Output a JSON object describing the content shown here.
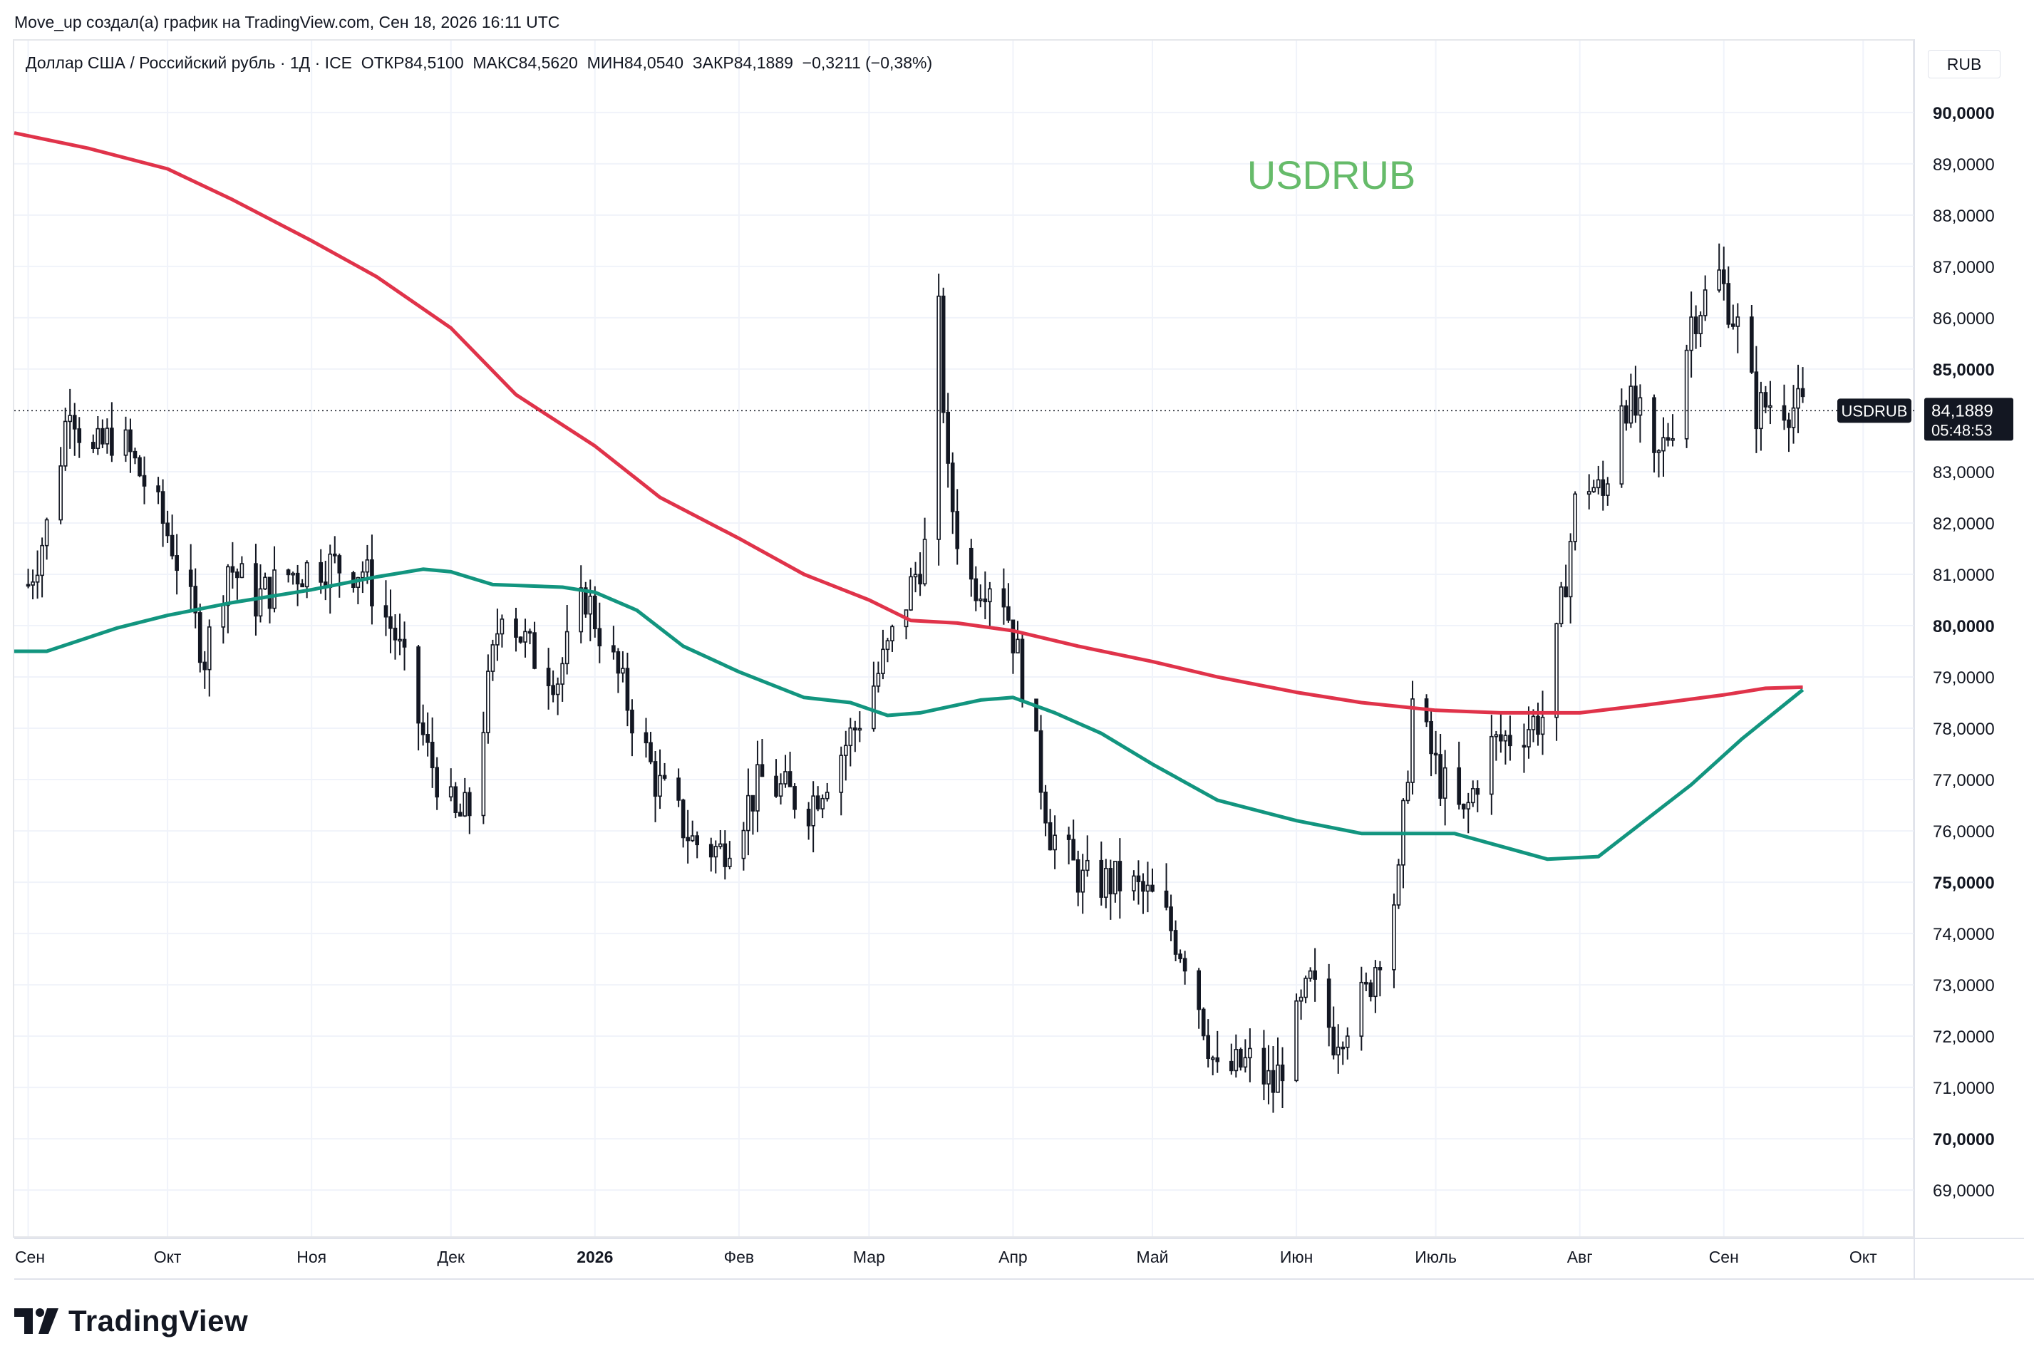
{
  "header": {
    "credit": "Move_up создал(а) график на TradingView.com, Сен 18, 2026 16:11 UTC",
    "symbol_line": "Доллар США / Российский рубль · 1Д · ICE  ОТКР84,5100  МАКС84,5620  МИН84,0540  ЗАКР84,1889  −0,3211 (−0,38%)",
    "currency": "RUB"
  },
  "footer": {
    "brand": "TradingView"
  },
  "colors": {
    "ma_long": "#e0334a",
    "ma_short": "#12957f",
    "watermark": "#66bb6a",
    "candle_up_fill": "#ffffff",
    "candle_down_fill": "#131722",
    "price_tag": "#131722"
  },
  "chart_data": {
    "type": "candlestick",
    "title": "USDRUB",
    "symbol": "USDRUB",
    "y_axis_labels": [
      "90,0000",
      "89,0000",
      "88,0000",
      "87,0000",
      "86,0000",
      "85,0000",
      "83,0000",
      "82,0000",
      "81,0000",
      "80,0000",
      "79,0000",
      "78,0000",
      "77,0000",
      "76,0000",
      "75,0000",
      "74,0000",
      "73,0000",
      "72,0000",
      "71,0000",
      "70,0000",
      "69,0000"
    ],
    "y_axis_values": [
      90,
      89,
      88,
      87,
      86,
      85,
      83,
      82,
      81,
      80,
      79,
      78,
      77,
      76,
      75,
      74,
      73,
      72,
      71,
      70,
      69
    ],
    "y_axis_bold": [
      "90,0000",
      "85,0000",
      "80,0000",
      "75,0000",
      "70,0000"
    ],
    "ylim": [
      68.1,
      91.4
    ],
    "x_axis_labels": [
      {
        "label": "Сен",
        "date": "2025-09-01",
        "bold": false
      },
      {
        "label": "Окт",
        "date": "2025-10-01",
        "bold": false
      },
      {
        "label": "Ноя",
        "date": "2025-11-01",
        "bold": false
      },
      {
        "label": "Дек",
        "date": "2025-12-01",
        "bold": false
      },
      {
        "label": "2026",
        "date": "2026-01-01",
        "bold": true
      },
      {
        "label": "Фев",
        "date": "2026-02-01",
        "bold": false
      },
      {
        "label": "Мар",
        "date": "2026-03-01",
        "bold": false
      },
      {
        "label": "Апр",
        "date": "2026-04-01",
        "bold": false
      },
      {
        "label": "Май",
        "date": "2026-05-01",
        "bold": false
      },
      {
        "label": "Июн",
        "date": "2026-06-01",
        "bold": false
      },
      {
        "label": "Июль",
        "date": "2026-07-01",
        "bold": false
      },
      {
        "label": "Авг",
        "date": "2026-08-01",
        "bold": false
      },
      {
        "label": "Сен",
        "date": "2026-09-01",
        "bold": false
      },
      {
        "label": "Окт",
        "date": "2026-10-01",
        "bold": false
      }
    ],
    "xlim": [
      "2025-08-29",
      "2026-10-12"
    ],
    "last_price": {
      "value": 84.1889,
      "label": "84,1889",
      "countdown": "05:48:53",
      "symbol": "USDRUB"
    },
    "ohlc_keypoints": [
      [
        "2025-09-01",
        80.8
      ],
      [
        "2025-09-06",
        82.2
      ],
      [
        "2025-09-10",
        84.5
      ],
      [
        "2025-09-14",
        83.2
      ],
      [
        "2025-09-20",
        83.8
      ],
      [
        "2025-09-26",
        82.8
      ],
      [
        "2025-10-02",
        81.6
      ],
      [
        "2025-10-09",
        79.4
      ],
      [
        "2025-10-14",
        81.2
      ],
      [
        "2025-10-20",
        80.5
      ],
      [
        "2025-10-27",
        81.0
      ],
      [
        "2025-11-03",
        81.2
      ],
      [
        "2025-11-12",
        81.1
      ],
      [
        "2025-11-19",
        79.8
      ],
      [
        "2025-11-26",
        77.5
      ],
      [
        "2025-12-02",
        76.2
      ],
      [
        "2025-12-05",
        76.4
      ],
      [
        "2025-12-12",
        80.5
      ],
      [
        "2025-12-18",
        79.5
      ],
      [
        "2025-12-24",
        79.0
      ],
      [
        "2025-12-30",
        80.6
      ],
      [
        "2026-01-06",
        79.0
      ],
      [
        "2026-01-14",
        77.0
      ],
      [
        "2026-01-22",
        75.8
      ],
      [
        "2026-01-28",
        75.6
      ],
      [
        "2026-02-06",
        77.0
      ],
      [
        "2026-02-16",
        76.5
      ],
      [
        "2026-02-26",
        78.0
      ],
      [
        "2026-03-05",
        79.5
      ],
      [
        "2026-03-13",
        81.5
      ],
      [
        "2026-03-16",
        86.0
      ],
      [
        "2026-03-18",
        82.8
      ],
      [
        "2026-03-22",
        80.8
      ],
      [
        "2026-03-29",
        81.0
      ],
      [
        "2026-04-03",
        79.0
      ],
      [
        "2026-04-09",
        76.0
      ],
      [
        "2026-04-16",
        75.0
      ],
      [
        "2026-04-25",
        75.0
      ],
      [
        "2026-05-02",
        74.6
      ],
      [
        "2026-05-09",
        73.4
      ],
      [
        "2026-05-15",
        71.2
      ],
      [
        "2026-05-22",
        71.5
      ],
      [
        "2026-05-27",
        71.0
      ],
      [
        "2026-06-04",
        73.0
      ],
      [
        "2026-06-09",
        72.0
      ],
      [
        "2026-06-16",
        72.8
      ],
      [
        "2026-06-23",
        75.0
      ],
      [
        "2026-06-26",
        78.5
      ],
      [
        "2026-07-02",
        77.0
      ],
      [
        "2026-07-07",
        76.2
      ],
      [
        "2026-07-12",
        77.6
      ],
      [
        "2026-07-20",
        78.0
      ],
      [
        "2026-07-25",
        78.3
      ],
      [
        "2026-07-29",
        81.0
      ],
      [
        "2026-08-01",
        83.0
      ],
      [
        "2026-08-06",
        82.5
      ],
      [
        "2026-08-10",
        84.5
      ],
      [
        "2026-08-14",
        84.0
      ],
      [
        "2026-08-17",
        83.0
      ],
      [
        "2026-08-21",
        84.0
      ],
      [
        "2026-08-25",
        86.0
      ],
      [
        "2026-08-31",
        86.8
      ],
      [
        "2026-09-04",
        85.8
      ],
      [
        "2026-09-08",
        84.2
      ],
      [
        "2026-09-12",
        84.4
      ],
      [
        "2026-09-18",
        84.19
      ]
    ],
    "ma_long": [
      [
        "2025-08-29",
        89.6
      ],
      [
        "2025-09-14",
        89.3
      ],
      [
        "2025-10-01",
        88.9
      ],
      [
        "2025-10-15",
        88.3
      ],
      [
        "2025-11-01",
        87.5
      ],
      [
        "2025-11-15",
        86.8
      ],
      [
        "2025-12-01",
        85.8
      ],
      [
        "2025-12-15",
        84.5
      ],
      [
        "2026-01-01",
        83.5
      ],
      [
        "2026-01-15",
        82.5
      ],
      [
        "2026-02-01",
        81.7
      ],
      [
        "2026-02-15",
        81.0
      ],
      [
        "2026-03-01",
        80.5
      ],
      [
        "2026-03-10",
        80.1
      ],
      [
        "2026-03-20",
        80.05
      ],
      [
        "2026-04-01",
        79.9
      ],
      [
        "2026-04-15",
        79.6
      ],
      [
        "2026-05-01",
        79.3
      ],
      [
        "2026-05-15",
        79.0
      ],
      [
        "2026-06-01",
        78.7
      ],
      [
        "2026-06-15",
        78.5
      ],
      [
        "2026-07-01",
        78.35
      ],
      [
        "2026-07-15",
        78.3
      ],
      [
        "2026-08-01",
        78.3
      ],
      [
        "2026-08-15",
        78.45
      ],
      [
        "2026-09-01",
        78.65
      ],
      [
        "2026-09-10",
        78.78
      ],
      [
        "2026-09-18",
        78.8
      ]
    ],
    "ma_short": [
      [
        "2025-08-29",
        79.5
      ],
      [
        "2025-09-05",
        79.5
      ],
      [
        "2025-09-20",
        79.95
      ],
      [
        "2025-10-01",
        80.2
      ],
      [
        "2025-10-15",
        80.45
      ],
      [
        "2025-11-01",
        80.7
      ],
      [
        "2025-11-15",
        80.95
      ],
      [
        "2025-11-25",
        81.1
      ],
      [
        "2025-12-01",
        81.05
      ],
      [
        "2025-12-10",
        80.8
      ],
      [
        "2025-12-25",
        80.75
      ],
      [
        "2026-01-01",
        80.65
      ],
      [
        "2026-01-10",
        80.3
      ],
      [
        "2026-01-20",
        79.6
      ],
      [
        "2026-02-01",
        79.1
      ],
      [
        "2026-02-15",
        78.6
      ],
      [
        "2026-02-25",
        78.5
      ],
      [
        "2026-03-05",
        78.25
      ],
      [
        "2026-03-12",
        78.3
      ],
      [
        "2026-03-25",
        78.55
      ],
      [
        "2026-04-01",
        78.6
      ],
      [
        "2026-04-10",
        78.3
      ],
      [
        "2026-04-20",
        77.9
      ],
      [
        "2026-05-01",
        77.3
      ],
      [
        "2026-05-15",
        76.6
      ],
      [
        "2026-06-01",
        76.2
      ],
      [
        "2026-06-15",
        75.95
      ],
      [
        "2026-06-25",
        75.95
      ],
      [
        "2026-07-05",
        75.95
      ],
      [
        "2026-07-15",
        75.7
      ],
      [
        "2026-07-25",
        75.45
      ],
      [
        "2026-08-05",
        75.5
      ],
      [
        "2026-08-15",
        76.2
      ],
      [
        "2026-08-25",
        76.9
      ],
      [
        "2026-09-05",
        77.8
      ],
      [
        "2026-09-18",
        78.75
      ]
    ]
  }
}
